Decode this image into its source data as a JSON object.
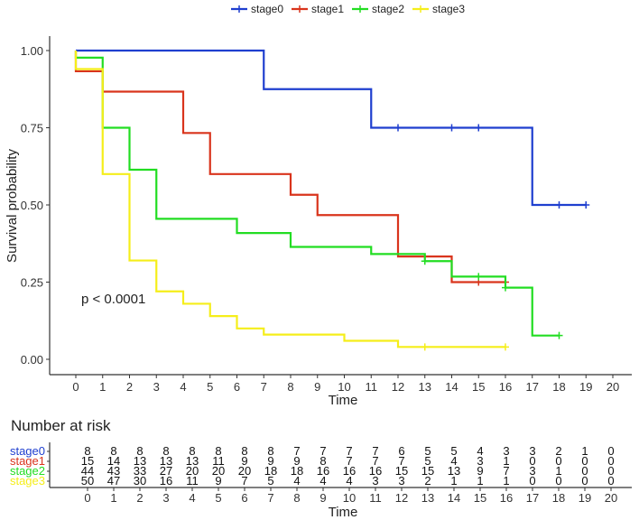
{
  "chart_data": {
    "type": "line",
    "subtype": "kaplan-meier",
    "legend_position": "top",
    "xlabel": "Time",
    "ylabel": "Survival probability",
    "xlim": [
      0,
      20
    ],
    "ylim": [
      0,
      1
    ],
    "x_ticks": [
      "0",
      "1",
      "2",
      "3",
      "4",
      "5",
      "6",
      "7",
      "8",
      "9",
      "10",
      "11",
      "12",
      "13",
      "14",
      "15",
      "16",
      "17",
      "18",
      "19",
      "20"
    ],
    "y_ticks": [
      "0.00",
      "0.25",
      "0.50",
      "0.75",
      "1.00"
    ],
    "annotation": "p < 0.0001",
    "series": [
      {
        "name": "stage0",
        "color": "#1f3fcf",
        "steps": [
          [
            0,
            1.0
          ],
          [
            7,
            0.875
          ],
          [
            11,
            0.75
          ],
          [
            17,
            0.5
          ]
        ],
        "end": 19,
        "censor": [
          [
            12,
            0.75
          ],
          [
            14,
            0.75
          ],
          [
            15,
            0.75
          ],
          [
            18,
            0.5
          ],
          [
            19,
            0.5
          ]
        ]
      },
      {
        "name": "stage1",
        "color": "#d9341c",
        "steps": [
          [
            0,
            0.933
          ],
          [
            1,
            0.867
          ],
          [
            4,
            0.733
          ],
          [
            5,
            0.6
          ],
          [
            8,
            0.533
          ],
          [
            9,
            0.467
          ],
          [
            12,
            0.333
          ],
          [
            14,
            0.25
          ]
        ],
        "end": 16,
        "censor": [
          [
            15,
            0.25
          ],
          [
            16,
            0.25
          ]
        ]
      },
      {
        "name": "stage2",
        "color": "#22dd22",
        "steps": [
          [
            0,
            0.977
          ],
          [
            1,
            0.75
          ],
          [
            2,
            0.614
          ],
          [
            3,
            0.455
          ],
          [
            6,
            0.409
          ],
          [
            8,
            0.364
          ],
          [
            11,
            0.341
          ],
          [
            13,
            0.318
          ],
          [
            14,
            0.268
          ],
          [
            16,
            0.232
          ],
          [
            17,
            0.077
          ]
        ],
        "end": 18,
        "censor": [
          [
            13,
            0.318
          ],
          [
            15,
            0.268
          ],
          [
            16,
            0.232
          ],
          [
            18,
            0.077
          ]
        ]
      },
      {
        "name": "stage3",
        "color": "#f5ee1a",
        "steps": [
          [
            0,
            0.94
          ],
          [
            1,
            0.6
          ],
          [
            2,
            0.32
          ],
          [
            3,
            0.22
          ],
          [
            4,
            0.18
          ],
          [
            5,
            0.14
          ],
          [
            6,
            0.1
          ],
          [
            7,
            0.08
          ],
          [
            10,
            0.06
          ],
          [
            12,
            0.04
          ]
        ],
        "end": 16,
        "censor": [
          [
            13,
            0.04
          ],
          [
            16,
            0.04
          ]
        ]
      }
    ],
    "risk_table": {
      "title": "Number at risk",
      "xlabel": "Time",
      "rows": [
        {
          "name": "stage0",
          "values": [
            8,
            8,
            8,
            8,
            8,
            8,
            8,
            8,
            7,
            7,
            7,
            7,
            6,
            5,
            5,
            4,
            3,
            3,
            2,
            1,
            0
          ]
        },
        {
          "name": "stage1",
          "values": [
            15,
            14,
            13,
            13,
            13,
            11,
            9,
            9,
            9,
            8,
            7,
            7,
            7,
            5,
            4,
            3,
            1,
            0,
            0,
            0,
            0
          ]
        },
        {
          "name": "stage2",
          "values": [
            44,
            43,
            33,
            27,
            20,
            20,
            20,
            18,
            18,
            16,
            16,
            16,
            15,
            15,
            13,
            9,
            7,
            3,
            1,
            0,
            0
          ]
        },
        {
          "name": "stage3",
          "values": [
            50,
            47,
            30,
            16,
            11,
            9,
            7,
            5,
            4,
            4,
            4,
            3,
            3,
            2,
            1,
            1,
            1,
            0,
            0,
            0,
            0
          ]
        }
      ]
    }
  }
}
